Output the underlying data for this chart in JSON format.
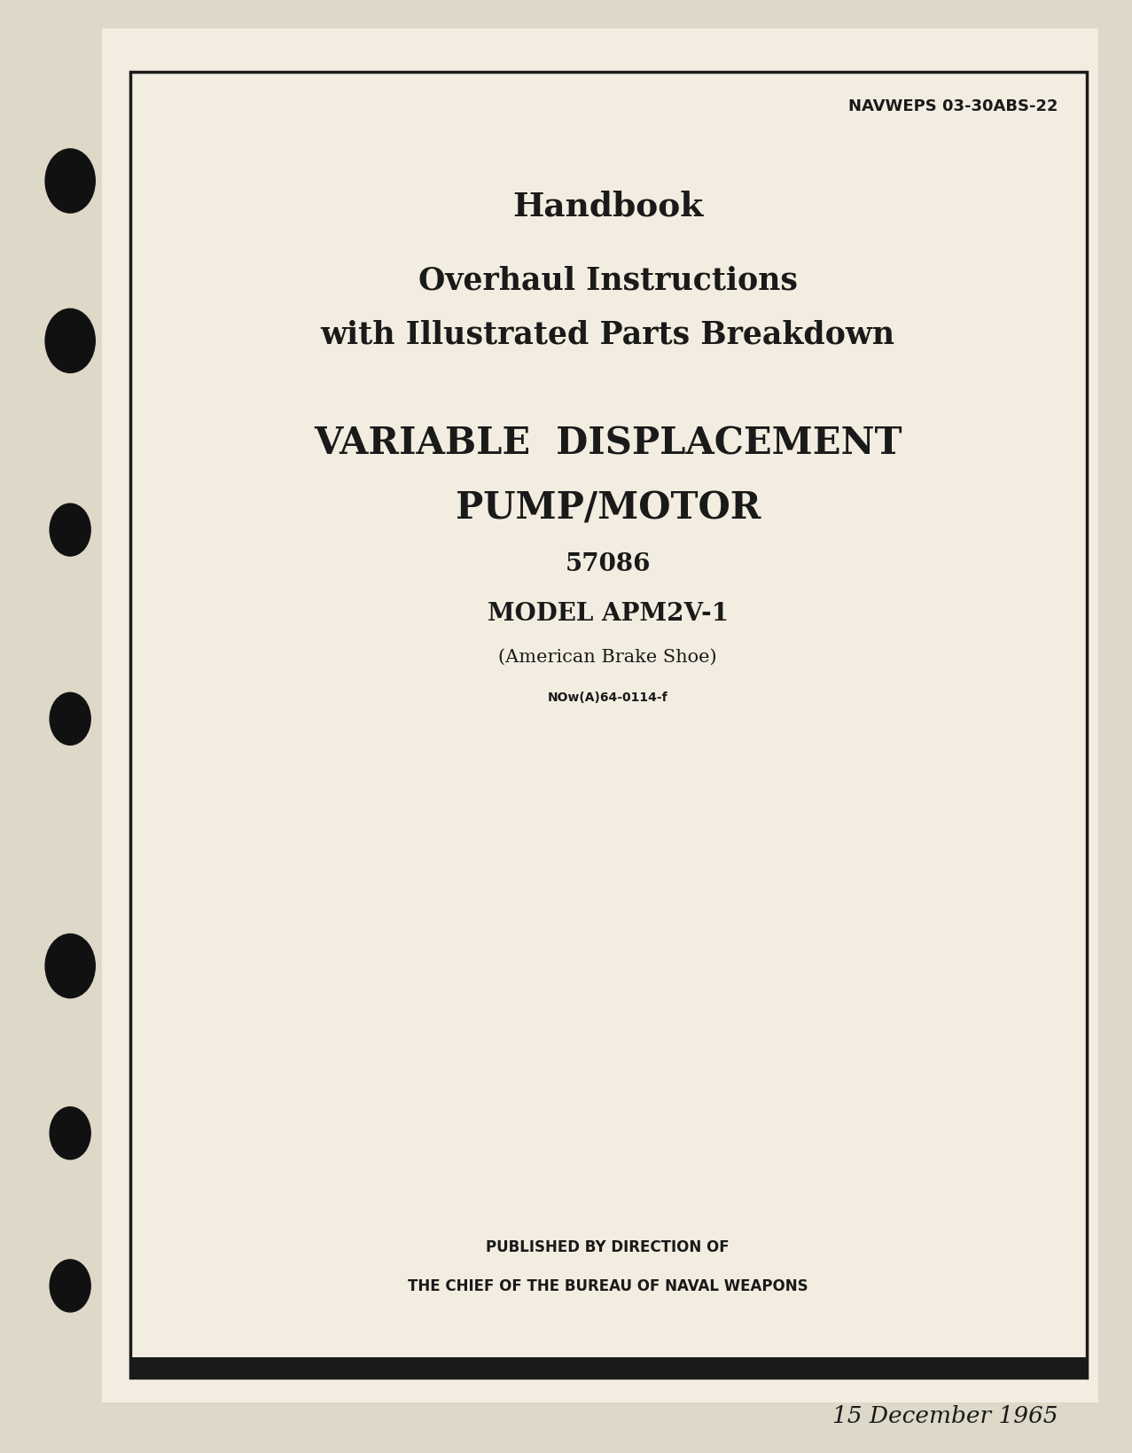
{
  "background_color": "#ddd8c8",
  "page_bg": "#f2ede0",
  "border_color": "#1a1a1a",
  "text_color": "#1a1a1a",
  "header_ref": "NAVWEPS 03-30ABS-22",
  "line1": "Handbook",
  "line2": "Overhaul Instructions",
  "line3": "with Illustrated Parts Breakdown",
  "line4": "VARIABLE  DISPLACEMENT",
  "line5": "PUMP/MOTOR",
  "line6": "57086",
  "line7": "MODEL APM2V-1",
  "line8": "(American Brake Shoe)",
  "line9": "NOw(A)64-0114-f",
  "line10": "PUBLISHED BY DIRECTION OF",
  "line11": "THE CHIEF OF THE BUREAU OF NAVAL WEAPONS",
  "date_line": "15 December 1965",
  "bullet_color": "#111111",
  "border_lw": 2.5
}
